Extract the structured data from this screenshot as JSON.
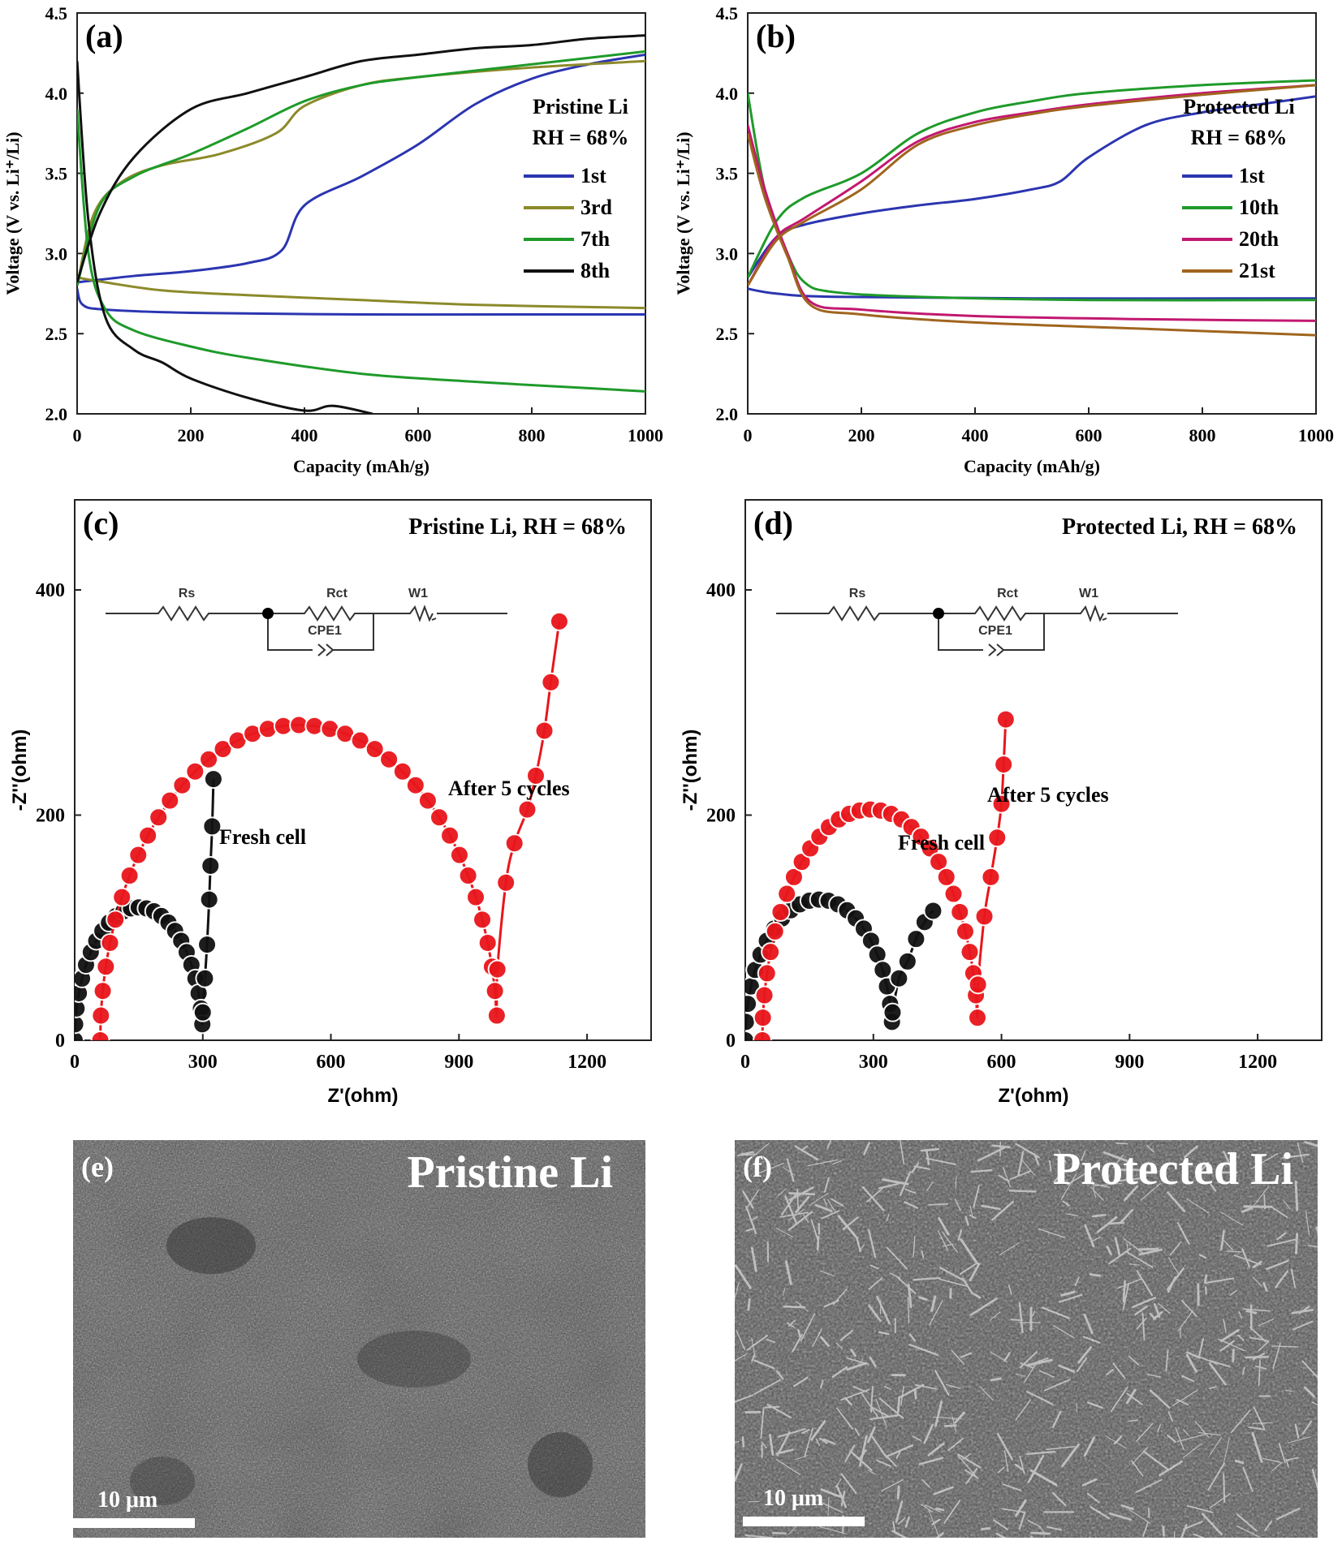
{
  "chart_data": [
    {
      "id": "a",
      "type": "line",
      "panel_label": "(a)",
      "xlabel": "Capacity (mAh/g)",
      "ylabel": "Voltage (V vs. Li⁺/Li)",
      "xlim": [
        0,
        1000
      ],
      "ylim": [
        2.0,
        4.5
      ],
      "xticks": [
        "0",
        "200",
        "400",
        "600",
        "800",
        "1000"
      ],
      "yticks": [
        "2.0",
        "2.5",
        "3.0",
        "3.5",
        "4.0",
        "4.5"
      ],
      "legend_title": [
        "Pristine Li",
        "RH = 68%"
      ],
      "series": [
        {
          "name": "1st",
          "color": "#2b35b0",
          "charge": [
            [
              0,
              2.82
            ],
            [
              100,
              2.86
            ],
            [
              200,
              2.89
            ],
            [
              300,
              2.94
            ],
            [
              360,
              3.02
            ],
            [
              400,
              3.3
            ],
            [
              500,
              3.48
            ],
            [
              600,
              3.68
            ],
            [
              700,
              3.93
            ],
            [
              800,
              4.09
            ],
            [
              900,
              4.18
            ],
            [
              1000,
              4.24
            ]
          ],
          "discharge": [
            [
              0,
              2.78
            ],
            [
              10,
              2.68
            ],
            [
              50,
              2.65
            ],
            [
              200,
              2.63
            ],
            [
              500,
              2.62
            ],
            [
              800,
              2.62
            ],
            [
              1000,
              2.62
            ]
          ]
        },
        {
          "name": "3rd",
          "color": "#8c8a2a",
          "charge": [
            [
              0,
              2.8
            ],
            [
              30,
              3.25
            ],
            [
              80,
              3.45
            ],
            [
              150,
              3.55
            ],
            [
              250,
              3.62
            ],
            [
              350,
              3.75
            ],
            [
              400,
              3.92
            ],
            [
              500,
              4.05
            ],
            [
              600,
              4.1
            ],
            [
              800,
              4.16
            ],
            [
              1000,
              4.2
            ]
          ],
          "discharge": [
            [
              0,
              2.85
            ],
            [
              50,
              2.82
            ],
            [
              150,
              2.77
            ],
            [
              300,
              2.74
            ],
            [
              500,
              2.71
            ],
            [
              700,
              2.68
            ],
            [
              1000,
              2.66
            ]
          ]
        },
        {
          "name": "7th",
          "color": "#1f9a2a",
          "charge": [
            [
              0,
              2.8
            ],
            [
              40,
              3.3
            ],
            [
              100,
              3.48
            ],
            [
              200,
              3.62
            ],
            [
              300,
              3.78
            ],
            [
              400,
              3.95
            ],
            [
              500,
              4.05
            ],
            [
              600,
              4.1
            ],
            [
              800,
              4.18
            ],
            [
              1000,
              4.26
            ]
          ],
          "discharge": [
            [
              0,
              3.9
            ],
            [
              20,
              3.0
            ],
            [
              50,
              2.65
            ],
            [
              100,
              2.52
            ],
            [
              200,
              2.42
            ],
            [
              300,
              2.35
            ],
            [
              500,
              2.25
            ],
            [
              700,
              2.2
            ],
            [
              900,
              2.16
            ],
            [
              1000,
              2.14
            ]
          ]
        },
        {
          "name": "8th",
          "color": "#111111",
          "charge": [
            [
              0,
              2.82
            ],
            [
              40,
              3.25
            ],
            [
              100,
              3.6
            ],
            [
              200,
              3.9
            ],
            [
              300,
              4.0
            ],
            [
              400,
              4.1
            ],
            [
              500,
              4.2
            ],
            [
              600,
              4.24
            ],
            [
              700,
              4.28
            ],
            [
              800,
              4.3
            ],
            [
              900,
              4.34
            ],
            [
              1000,
              4.36
            ]
          ],
          "discharge": [
            [
              0,
              4.2
            ],
            [
              20,
              3.2
            ],
            [
              50,
              2.6
            ],
            [
              100,
              2.4
            ],
            [
              150,
              2.32
            ],
            [
              200,
              2.22
            ],
            [
              300,
              2.1
            ],
            [
              400,
              2.02
            ],
            [
              450,
              2.05
            ],
            [
              520,
              2.0
            ]
          ]
        }
      ]
    },
    {
      "id": "b",
      "type": "line",
      "panel_label": "(b)",
      "xlabel": "Capacity (mAh/g)",
      "ylabel": "Voltage (V vs. Li⁺/Li)",
      "xlim": [
        0,
        1000
      ],
      "ylim": [
        2.0,
        4.5
      ],
      "xticks": [
        "0",
        "200",
        "400",
        "600",
        "800",
        "1000"
      ],
      "yticks": [
        "2.0",
        "2.5",
        "3.0",
        "3.5",
        "4.0",
        "4.5"
      ],
      "legend_title": [
        "Protected Li",
        "RH = 68%"
      ],
      "series": [
        {
          "name": "1st",
          "color": "#2b35b0",
          "charge": [
            [
              0,
              2.85
            ],
            [
              50,
              3.1
            ],
            [
              100,
              3.18
            ],
            [
              200,
              3.25
            ],
            [
              300,
              3.3
            ],
            [
              400,
              3.34
            ],
            [
              500,
              3.4
            ],
            [
              550,
              3.45
            ],
            [
              600,
              3.6
            ],
            [
              700,
              3.8
            ],
            [
              800,
              3.88
            ],
            [
              900,
              3.93
            ],
            [
              1000,
              3.98
            ]
          ],
          "discharge": [
            [
              0,
              2.78
            ],
            [
              50,
              2.75
            ],
            [
              150,
              2.73
            ],
            [
              500,
              2.72
            ],
            [
              1000,
              2.72
            ]
          ]
        },
        {
          "name": "10th",
          "color": "#1f9a2a",
          "charge": [
            [
              0,
              2.85
            ],
            [
              50,
              3.2
            ],
            [
              100,
              3.35
            ],
            [
              200,
              3.5
            ],
            [
              300,
              3.75
            ],
            [
              400,
              3.88
            ],
            [
              500,
              3.95
            ],
            [
              600,
              4.0
            ],
            [
              800,
              4.05
            ],
            [
              1000,
              4.08
            ]
          ],
          "discharge": [
            [
              0,
              4.0
            ],
            [
              30,
              3.4
            ],
            [
              70,
              3.0
            ],
            [
              100,
              2.82
            ],
            [
              150,
              2.76
            ],
            [
              300,
              2.73
            ],
            [
              600,
              2.71
            ],
            [
              1000,
              2.71
            ]
          ]
        },
        {
          "name": "20th",
          "color": "#c21870",
          "charge": [
            [
              0,
              2.8
            ],
            [
              50,
              3.1
            ],
            [
              100,
              3.22
            ],
            [
              200,
              3.45
            ],
            [
              300,
              3.7
            ],
            [
              400,
              3.82
            ],
            [
              500,
              3.88
            ],
            [
              600,
              3.93
            ],
            [
              800,
              4.0
            ],
            [
              1000,
              4.05
            ]
          ],
          "discharge": [
            [
              0,
              3.8
            ],
            [
              30,
              3.4
            ],
            [
              70,
              3.0
            ],
            [
              110,
              2.7
            ],
            [
              200,
              2.65
            ],
            [
              400,
              2.61
            ],
            [
              700,
              2.59
            ],
            [
              1000,
              2.58
            ]
          ]
        },
        {
          "name": "21st",
          "color": "#a0651e",
          "charge": [
            [
              0,
              2.8
            ],
            [
              50,
              3.08
            ],
            [
              100,
              3.2
            ],
            [
              200,
              3.4
            ],
            [
              300,
              3.68
            ],
            [
              400,
              3.8
            ],
            [
              500,
              3.87
            ],
            [
              600,
              3.92
            ],
            [
              800,
              3.99
            ],
            [
              1000,
              4.05
            ]
          ],
          "discharge": [
            [
              0,
              3.75
            ],
            [
              30,
              3.35
            ],
            [
              70,
              2.98
            ],
            [
              110,
              2.68
            ],
            [
              200,
              2.62
            ],
            [
              400,
              2.57
            ],
            [
              700,
              2.53
            ],
            [
              1000,
              2.49
            ]
          ]
        }
      ]
    },
    {
      "id": "c",
      "type": "scatter",
      "panel_label": "(c)",
      "title": "Pristine Li, RH = 68%",
      "xlabel": "Z'(ohm)",
      "ylabel": "-Z''(ohm)",
      "xlim": [
        0,
        1350
      ],
      "ylim": [
        0,
        480
      ],
      "xticks": [
        "0",
        "300",
        "600",
        "900",
        "1200"
      ],
      "yticks": [
        "0",
        "200",
        "400"
      ],
      "annotations": [
        "Fresh cell",
        "After 5 cycles"
      ],
      "circuit": {
        "labels": [
          "Rs",
          "Rct",
          "W1",
          "CPE1"
        ]
      },
      "series": [
        {
          "name": "Fresh cell",
          "color": "#111111",
          "semicircle": {
            "start": 0,
            "end": 300,
            "height": 118,
            "points": 26
          },
          "tail": [
            [
              305,
              55
            ],
            [
              310,
              85
            ],
            [
              315,
              125
            ],
            [
              318,
              155
            ],
            [
              322,
              190
            ],
            [
              325,
              232
            ]
          ]
        },
        {
          "name": "After 5 cycles",
          "color": "#e8161b",
          "semicircle": {
            "start": 60,
            "end": 990,
            "height": 280,
            "points": 40
          },
          "tail": [
            [
              1010,
              140
            ],
            [
              1030,
              175
            ],
            [
              1060,
              205
            ],
            [
              1080,
              235
            ],
            [
              1100,
              275
            ],
            [
              1115,
              318
            ],
            [
              1135,
              372
            ]
          ]
        }
      ]
    },
    {
      "id": "d",
      "type": "scatter",
      "panel_label": "(d)",
      "title": "Protected Li, RH = 68%",
      "xlabel": "Z'(ohm)",
      "ylabel": "-Z''(ohm)",
      "xlim": [
        0,
        1350
      ],
      "ylim": [
        0,
        480
      ],
      "xticks": [
        "0",
        "300",
        "600",
        "900",
        "1200"
      ],
      "yticks": [
        "0",
        "200",
        "400"
      ],
      "annotations": [
        "Fresh cell",
        "After 5 cycles"
      ],
      "circuit": {
        "labels": [
          "Rs",
          "Rct",
          "W1",
          "CPE1"
        ]
      },
      "series": [
        {
          "name": "Fresh cell",
          "color": "#111111",
          "semicircle": {
            "start": 0,
            "end": 345,
            "height": 125,
            "points": 24
          },
          "tail": [
            [
              360,
              55
            ],
            [
              380,
              70
            ],
            [
              400,
              90
            ],
            [
              420,
              105
            ],
            [
              440,
              115
            ]
          ]
        },
        {
          "name": "After 5 cycles",
          "color": "#e8161b",
          "semicircle": {
            "start": 40,
            "end": 545,
            "height": 205,
            "points": 32
          },
          "tail": [
            [
              560,
              110
            ],
            [
              575,
              145
            ],
            [
              590,
              180
            ],
            [
              600,
              210
            ],
            [
              605,
              245
            ],
            [
              610,
              285
            ]
          ]
        }
      ]
    }
  ],
  "images": [
    {
      "label": "(e)",
      "title": "Pristine Li",
      "scalebar": "10 μm"
    },
    {
      "label": "(f)",
      "title": "Protected Li",
      "scalebar": "10 μm"
    }
  ]
}
